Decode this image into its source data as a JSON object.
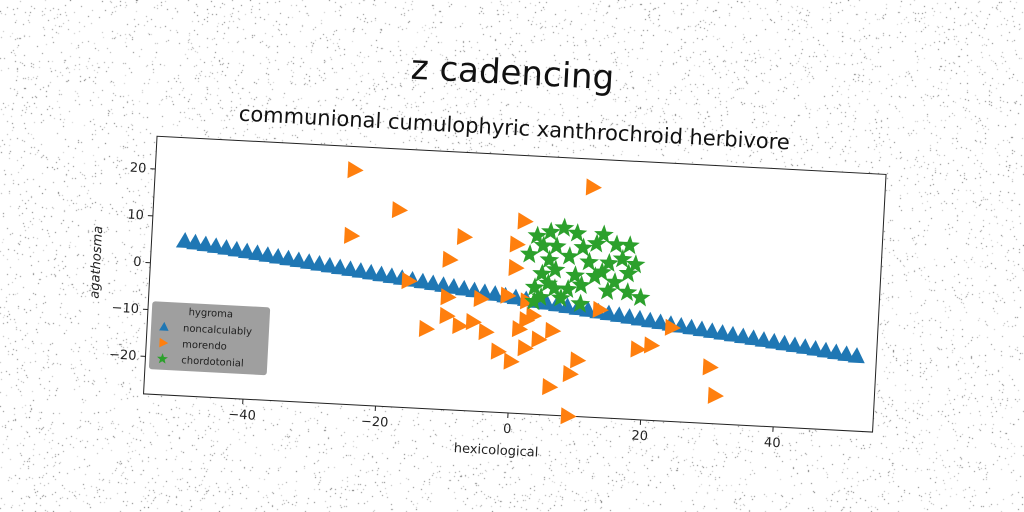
{
  "chart_data": {
    "type": "scatter",
    "title": "z cadencing",
    "subtitle": "communional cumulophyric xanthrochroid herbivore",
    "xlabel": "hexicological",
    "ylabel": "agathosma",
    "xlim": [
      -55,
      55
    ],
    "ylim": [
      -28,
      27
    ],
    "xticks": [
      -40,
      -20,
      0,
      20,
      40
    ],
    "yticks": [
      -20,
      -10,
      0,
      10,
      20
    ],
    "grid": false,
    "legend": {
      "title": "hygroma",
      "placement": "lower-left",
      "background": "#9a9a9a"
    },
    "series": [
      {
        "name": "noncalculably",
        "marker": "triangle-up",
        "color": "#1f77b4",
        "line": {
          "x_start": -50,
          "x_end": 52,
          "y_start": 5,
          "y_end": -12,
          "count": 66
        }
      },
      {
        "name": "morendo",
        "marker": "triangle-right",
        "color": "#ff7f0e",
        "points": [
          [
            -25,
            22
          ],
          [
            11,
            21
          ],
          [
            -18,
            14
          ],
          [
            -25,
            8
          ],
          [
            -8,
            9
          ],
          [
            0,
            8
          ],
          [
            1,
            13
          ],
          [
            0,
            3
          ],
          [
            -10,
            4
          ],
          [
            -16,
            -1
          ],
          [
            -10,
            -4
          ],
          [
            -5,
            -4
          ],
          [
            -1,
            -3
          ],
          [
            2,
            -4
          ],
          [
            3,
            -7
          ],
          [
            -10,
            -8
          ],
          [
            -8,
            -10
          ],
          [
            -6,
            -9
          ],
          [
            -4,
            -11
          ],
          [
            -13,
            -11
          ],
          [
            -2,
            -15
          ],
          [
            0,
            -17
          ],
          [
            2,
            -14
          ],
          [
            4,
            -12
          ],
          [
            6,
            -10
          ],
          [
            6,
            -22
          ],
          [
            10,
            -16
          ],
          [
            9,
            -19
          ],
          [
            13,
            -5
          ],
          [
            24,
            -8
          ],
          [
            21,
            -12
          ],
          [
            19,
            -13
          ],
          [
            30,
            -16
          ],
          [
            31,
            -22
          ],
          [
            9,
            -28
          ],
          [
            2,
            -8
          ],
          [
            1,
            -10
          ]
        ]
      },
      {
        "name": "chordotonial",
        "marker": "star",
        "color": "#2ca02c",
        "points": [
          [
            3,
            10
          ],
          [
            5,
            11
          ],
          [
            7,
            12
          ],
          [
            9,
            11
          ],
          [
            13,
            11
          ],
          [
            15,
            9
          ],
          [
            17,
            9
          ],
          [
            4,
            8
          ],
          [
            6,
            8
          ],
          [
            10,
            8
          ],
          [
            12,
            9
          ],
          [
            16,
            6
          ],
          [
            18,
            5
          ],
          [
            2,
            6
          ],
          [
            5,
            5
          ],
          [
            8,
            6
          ],
          [
            11,
            5
          ],
          [
            14,
            5
          ],
          [
            17,
            3
          ],
          [
            4,
            2
          ],
          [
            6,
            3
          ],
          [
            9,
            2
          ],
          [
            12,
            2
          ],
          [
            15,
            1
          ],
          [
            17,
            -1
          ],
          [
            3,
            -1
          ],
          [
            6,
            -1
          ],
          [
            8,
            -1
          ],
          [
            10,
            0
          ],
          [
            14,
            -1
          ],
          [
            19,
            -2
          ],
          [
            4,
            -3
          ],
          [
            7,
            -3
          ],
          [
            10,
            -4
          ],
          [
            3,
            -4
          ],
          [
            13,
            3
          ],
          [
            5,
            0
          ]
        ]
      }
    ]
  }
}
